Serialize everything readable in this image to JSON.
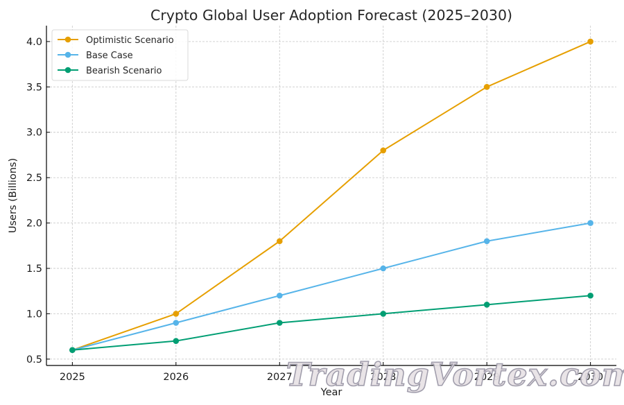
{
  "chart_data": {
    "type": "line",
    "title": "Crypto Global User Adoption Forecast (2025–2030)",
    "xlabel": "Year",
    "ylabel": "Users (Billions)",
    "x": [
      2025,
      2026,
      2027,
      2028,
      2029,
      2030
    ],
    "x_tick_labels": [
      "2025",
      "2026",
      "2027",
      "2028",
      "2029",
      "2030"
    ],
    "y_ticks": [
      0.5,
      1.0,
      1.5,
      2.0,
      2.5,
      3.0,
      3.5,
      4.0
    ],
    "y_tick_labels": [
      "0.5",
      "1.0",
      "1.5",
      "2.0",
      "2.5",
      "3.0",
      "3.5",
      "4.0"
    ],
    "xlim": [
      2024.75,
      2030.25
    ],
    "ylim": [
      0.43,
      4.175
    ],
    "grid": true,
    "legend_position": "top-left",
    "series": [
      {
        "name": "Optimistic Scenario",
        "color": "#E69F00",
        "marker": "circle",
        "values": [
          0.6,
          1.0,
          1.8,
          2.8,
          3.5,
          4.0
        ]
      },
      {
        "name": "Base Case",
        "color": "#56B4E9",
        "marker": "circle",
        "values": [
          0.6,
          0.9,
          1.2,
          1.5,
          1.8,
          2.0
        ]
      },
      {
        "name": "Bearish Scenario",
        "color": "#009E73",
        "marker": "circle",
        "values": [
          0.6,
          0.7,
          0.9,
          1.0,
          1.1,
          1.2
        ]
      }
    ]
  },
  "watermark": "TradingVortex.com"
}
